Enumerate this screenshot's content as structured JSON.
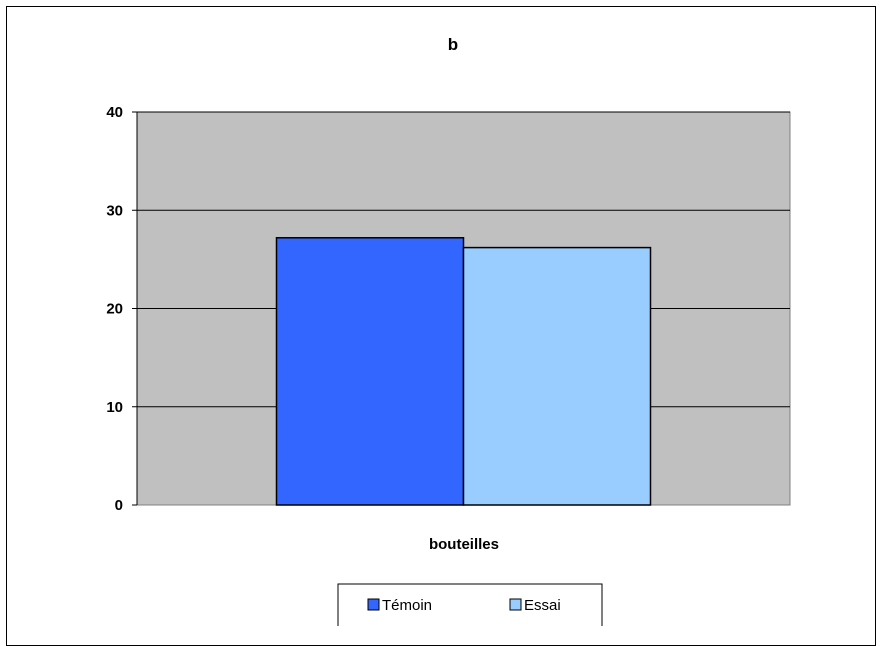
{
  "chart_data": {
    "type": "bar",
    "title": "b",
    "categories": [
      "bouteilles"
    ],
    "series": [
      {
        "name": "Témoin",
        "values": [
          27.2
        ]
      },
      {
        "name": "Essai",
        "values": [
          26.2
        ]
      }
    ],
    "xlabel": "bouteilles",
    "ylabel": "",
    "ylim": [
      0,
      40
    ],
    "yticks": [
      0,
      10,
      20,
      30,
      40
    ],
    "grid": true,
    "legend_position": "bottom",
    "colors": {
      "plot_background": "#c0c0c0",
      "series": [
        "#3366ff",
        "#99ccff"
      ]
    }
  }
}
